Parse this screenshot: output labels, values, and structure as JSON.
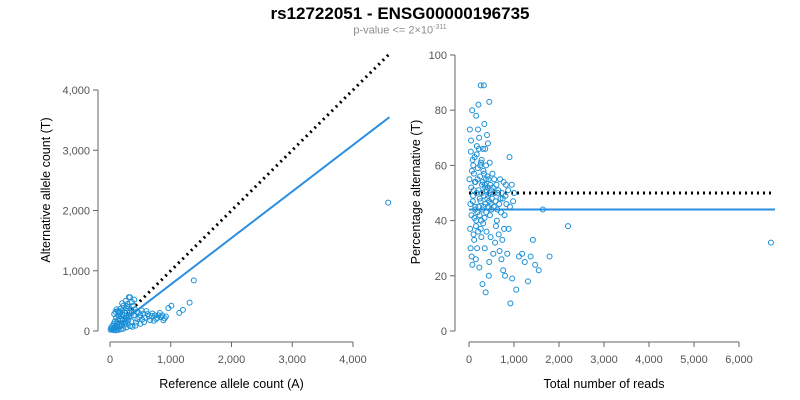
{
  "title": "rs12722051 - ENSG00000196735",
  "subtitle": {
    "prefix": "p-value <= 2×10",
    "exponent": "-311"
  },
  "colors": {
    "points": "#1a8fd6",
    "fit_line": "#2b8ee0",
    "reference_line": "#000000",
    "axis": "#666666"
  },
  "chart_data": [
    {
      "type": "scatter",
      "xlabel": "Reference allele count (A)",
      "ylabel": "Alternative allele count (T)",
      "xlim": [
        0,
        4600
      ],
      "ylim": [
        0,
        4600
      ],
      "xticks": [
        0,
        1000,
        2000,
        3000,
        4000
      ],
      "xtick_labels": [
        "0",
        "1,000",
        "2,000",
        "3,000",
        "4,000"
      ],
      "yticks": [
        0,
        1000,
        2000,
        3000,
        4000
      ],
      "ytick_labels": [
        "0",
        "1,000",
        "2,000",
        "3,000",
        "4,000"
      ],
      "lines": [
        {
          "kind": "reference",
          "style": "dotted",
          "x": [
            0,
            4600
          ],
          "y": [
            0,
            4600
          ]
        },
        {
          "kind": "fit",
          "style": "solid",
          "x": [
            0,
            4600
          ],
          "y": [
            0,
            3550
          ]
        }
      ],
      "points": [
        [
          4580,
          2130
        ],
        [
          1380,
          840
        ],
        [
          1310,
          470
        ],
        [
          1200,
          350
        ],
        [
          1140,
          300
        ],
        [
          1010,
          420
        ],
        [
          960,
          380
        ],
        [
          920,
          240
        ],
        [
          880,
          180
        ],
        [
          840,
          230
        ],
        [
          800,
          260
        ],
        [
          760,
          200
        ],
        [
          720,
          170
        ],
        [
          690,
          250
        ],
        [
          660,
          180
        ],
        [
          620,
          280
        ],
        [
          580,
          220
        ],
        [
          560,
          150
        ],
        [
          530,
          190
        ],
        [
          500,
          260
        ],
        [
          470,
          300
        ],
        [
          450,
          200
        ],
        [
          430,
          140
        ],
        [
          410,
          360
        ],
        [
          400,
          520
        ],
        [
          380,
          420
        ],
        [
          360,
          480
        ],
        [
          350,
          350
        ],
        [
          340,
          250
        ],
        [
          330,
          560
        ],
        [
          320,
          300
        ],
        [
          310,
          400
        ],
        [
          300,
          180
        ],
        [
          290,
          450
        ],
        [
          280,
          330
        ],
        [
          270,
          220
        ],
        [
          260,
          380
        ],
        [
          250,
          150
        ],
        [
          240,
          300
        ],
        [
          230,
          260
        ],
        [
          220,
          420
        ],
        [
          210,
          180
        ],
        [
          200,
          340
        ],
        [
          190,
          120
        ],
        [
          180,
          250
        ],
        [
          170,
          300
        ],
        [
          160,
          200
        ],
        [
          150,
          100
        ],
        [
          140,
          260
        ],
        [
          130,
          180
        ],
        [
          120,
          60
        ],
        [
          110,
          140
        ],
        [
          100,
          220
        ],
        [
          90,
          90
        ],
        [
          80,
          160
        ],
        [
          70,
          50
        ],
        [
          60,
          120
        ],
        [
          50,
          40
        ],
        [
          40,
          80
        ],
        [
          30,
          30
        ],
        [
          20,
          60
        ],
        [
          10,
          20
        ],
        [
          330,
          80
        ],
        [
          270,
          60
        ],
        [
          220,
          40
        ],
        [
          180,
          30
        ],
        [
          140,
          20
        ],
        [
          100,
          10
        ],
        [
          420,
          90
        ],
        [
          370,
          70
        ],
        [
          500,
          120
        ],
        [
          250,
          110
        ],
        [
          160,
          70
        ],
        [
          120,
          30
        ],
        [
          80,
          25
        ],
        [
          60,
          15
        ],
        [
          190,
          90
        ],
        [
          230,
          140
        ],
        [
          290,
          130
        ],
        [
          350,
          160
        ],
        [
          150,
          330
        ],
        [
          170,
          370
        ],
        [
          200,
          280
        ],
        [
          240,
          200
        ],
        [
          280,
          410
        ],
        [
          310,
          240
        ],
        [
          360,
          310
        ],
        [
          390,
          260
        ],
        [
          440,
          320
        ],
        [
          480,
          230
        ],
        [
          520,
          340
        ],
        [
          550,
          290
        ],
        [
          600,
          330
        ],
        [
          640,
          240
        ],
        [
          700,
          290
        ],
        [
          740,
          260
        ],
        [
          780,
          220
        ],
        [
          820,
          300
        ],
        [
          860,
          260
        ],
        [
          900,
          210
        ],
        [
          70,
          280
        ],
        [
          90,
          320
        ],
        [
          110,
          360
        ],
        [
          130,
          330
        ],
        [
          150,
          240
        ],
        [
          200,
          460
        ],
        [
          260,
          500
        ],
        [
          310,
          560
        ]
      ]
    },
    {
      "type": "scatter",
      "xlabel": "Total number of reads",
      "ylabel": "Percentage alternative (T)",
      "xlim": [
        0,
        6800
      ],
      "ylim": [
        0,
        100
      ],
      "xticks": [
        0,
        1000,
        2000,
        3000,
        4000,
        5000,
        6000
      ],
      "xtick_labels": [
        "0",
        "1,000",
        "2,000",
        "3,000",
        "4,000",
        "5,000",
        "6,000"
      ],
      "yticks": [
        0,
        20,
        40,
        60,
        80,
        100
      ],
      "ytick_labels": [
        "0",
        "20",
        "40",
        "60",
        "80",
        "100"
      ],
      "lines": [
        {
          "kind": "reference",
          "style": "dotted",
          "x": [
            0,
            6800
          ],
          "y": [
            50,
            50
          ]
        },
        {
          "kind": "fit",
          "style": "solid",
          "x": [
            0,
            6800
          ],
          "y": [
            44,
            44
          ]
        }
      ],
      "points": [
        [
          6710,
          32
        ],
        [
          2200,
          38
        ],
        [
          1790,
          27
        ],
        [
          1640,
          44
        ],
        [
          1550,
          22
        ],
        [
          1470,
          24
        ],
        [
          1420,
          33
        ],
        [
          1370,
          27
        ],
        [
          1310,
          18
        ],
        [
          1240,
          25
        ],
        [
          1180,
          28
        ],
        [
          1110,
          27
        ],
        [
          1050,
          15
        ],
        [
          1000,
          50
        ],
        [
          960,
          19
        ],
        [
          920,
          10
        ],
        [
          900,
          63
        ],
        [
          880,
          37
        ],
        [
          850,
          28
        ],
        [
          820,
          53
        ],
        [
          800,
          20
        ],
        [
          780,
          37
        ],
        [
          760,
          22
        ],
        [
          740,
          33
        ],
        [
          720,
          26
        ],
        [
          700,
          48
        ],
        [
          680,
          29
        ],
        [
          660,
          35
        ],
        [
          640,
          50
        ],
        [
          620,
          40
        ],
        [
          600,
          38
        ],
        [
          580,
          32
        ],
        [
          560,
          55
        ],
        [
          540,
          28
        ],
        [
          520,
          57
        ],
        [
          500,
          44
        ],
        [
          480,
          34
        ],
        [
          460,
          61
        ],
        [
          450,
          25
        ],
        [
          440,
          20
        ],
        [
          430,
          49
        ],
        [
          420,
          68
        ],
        [
          410,
          56
        ],
        [
          400,
          71
        ],
        [
          390,
          36
        ],
        [
          380,
          60
        ],
        [
          370,
          14
        ],
        [
          360,
          52
        ],
        [
          350,
          30
        ],
        [
          340,
          75
        ],
        [
          330,
          45
        ],
        [
          320,
          58
        ],
        [
          310,
          66
        ],
        [
          300,
          17
        ],
        [
          290,
          53
        ],
        [
          280,
          62
        ],
        [
          270,
          40
        ],
        [
          260,
          89
        ],
        [
          250,
          60
        ],
        [
          240,
          48
        ],
        [
          230,
          23
        ],
        [
          220,
          66
        ],
        [
          210,
          82
        ],
        [
          200,
          73
        ],
        [
          190,
          55
        ],
        [
          180,
          30
        ],
        [
          170,
          64
        ],
        [
          160,
          78
        ],
        [
          150,
          26
        ],
        [
          140,
          45
        ],
        [
          130,
          54
        ],
        [
          120,
          41
        ],
        [
          110,
          57
        ],
        [
          100,
          35
        ],
        [
          90,
          49
        ],
        [
          80,
          62
        ],
        [
          70,
          80
        ],
        [
          60,
          27
        ],
        [
          50,
          52
        ],
        [
          40,
          65
        ],
        [
          30,
          46
        ],
        [
          20,
          73
        ],
        [
          10,
          55
        ],
        [
          25,
          37
        ],
        [
          35,
          30
        ],
        [
          45,
          69
        ],
        [
          55,
          42
        ],
        [
          65,
          58
        ],
        [
          75,
          24
        ],
        [
          85,
          47
        ],
        [
          95,
          60
        ],
        [
          105,
          51
        ],
        [
          115,
          33
        ],
        [
          125,
          63
        ],
        [
          135,
          44
        ],
        [
          145,
          54
        ],
        [
          155,
          38
        ],
        [
          165,
          50
        ],
        [
          175,
          67
        ],
        [
          185,
          43
        ],
        [
          195,
          59
        ],
        [
          205,
          36
        ],
        [
          215,
          51
        ],
        [
          225,
          70
        ],
        [
          235,
          42
        ],
        [
          245,
          56
        ],
        [
          255,
          47
        ],
        [
          265,
          61
        ],
        [
          275,
          34
        ],
        [
          285,
          50
        ],
        [
          295,
          44
        ],
        [
          305,
          54
        ],
        [
          315,
          39
        ],
        [
          325,
          49
        ],
        [
          335,
          57
        ],
        [
          345,
          41
        ],
        [
          355,
          53
        ],
        [
          365,
          46
        ],
        [
          375,
          55
        ],
        [
          385,
          43
        ],
        [
          395,
          51
        ],
        [
          405,
          48
        ],
        [
          415,
          52
        ],
        [
          425,
          45
        ],
        [
          435,
          55
        ],
        [
          445,
          47
        ],
        [
          455,
          50
        ],
        [
          465,
          42
        ],
        [
          475,
          53
        ],
        [
          485,
          46
        ],
        [
          495,
          51
        ],
        [
          510,
          48
        ],
        [
          530,
          52
        ],
        [
          550,
          45
        ],
        [
          570,
          50
        ],
        [
          590,
          47
        ],
        [
          610,
          53
        ],
        [
          630,
          44
        ],
        [
          650,
          51
        ],
        [
          670,
          46
        ],
        [
          690,
          55
        ],
        [
          710,
          43
        ],
        [
          730,
          50
        ],
        [
          750,
          48
        ],
        [
          770,
          54
        ],
        [
          790,
          42
        ],
        [
          810,
          49
        ],
        [
          830,
          46
        ],
        [
          870,
          51
        ],
        [
          910,
          45
        ],
        [
          950,
          53
        ],
        [
          980,
          47
        ],
        [
          330,
          89
        ],
        [
          450,
          83
        ],
        [
          160,
          40
        ],
        [
          260,
          37
        ],
        [
          360,
          66
        ],
        [
          210,
          45
        ]
      ]
    }
  ]
}
